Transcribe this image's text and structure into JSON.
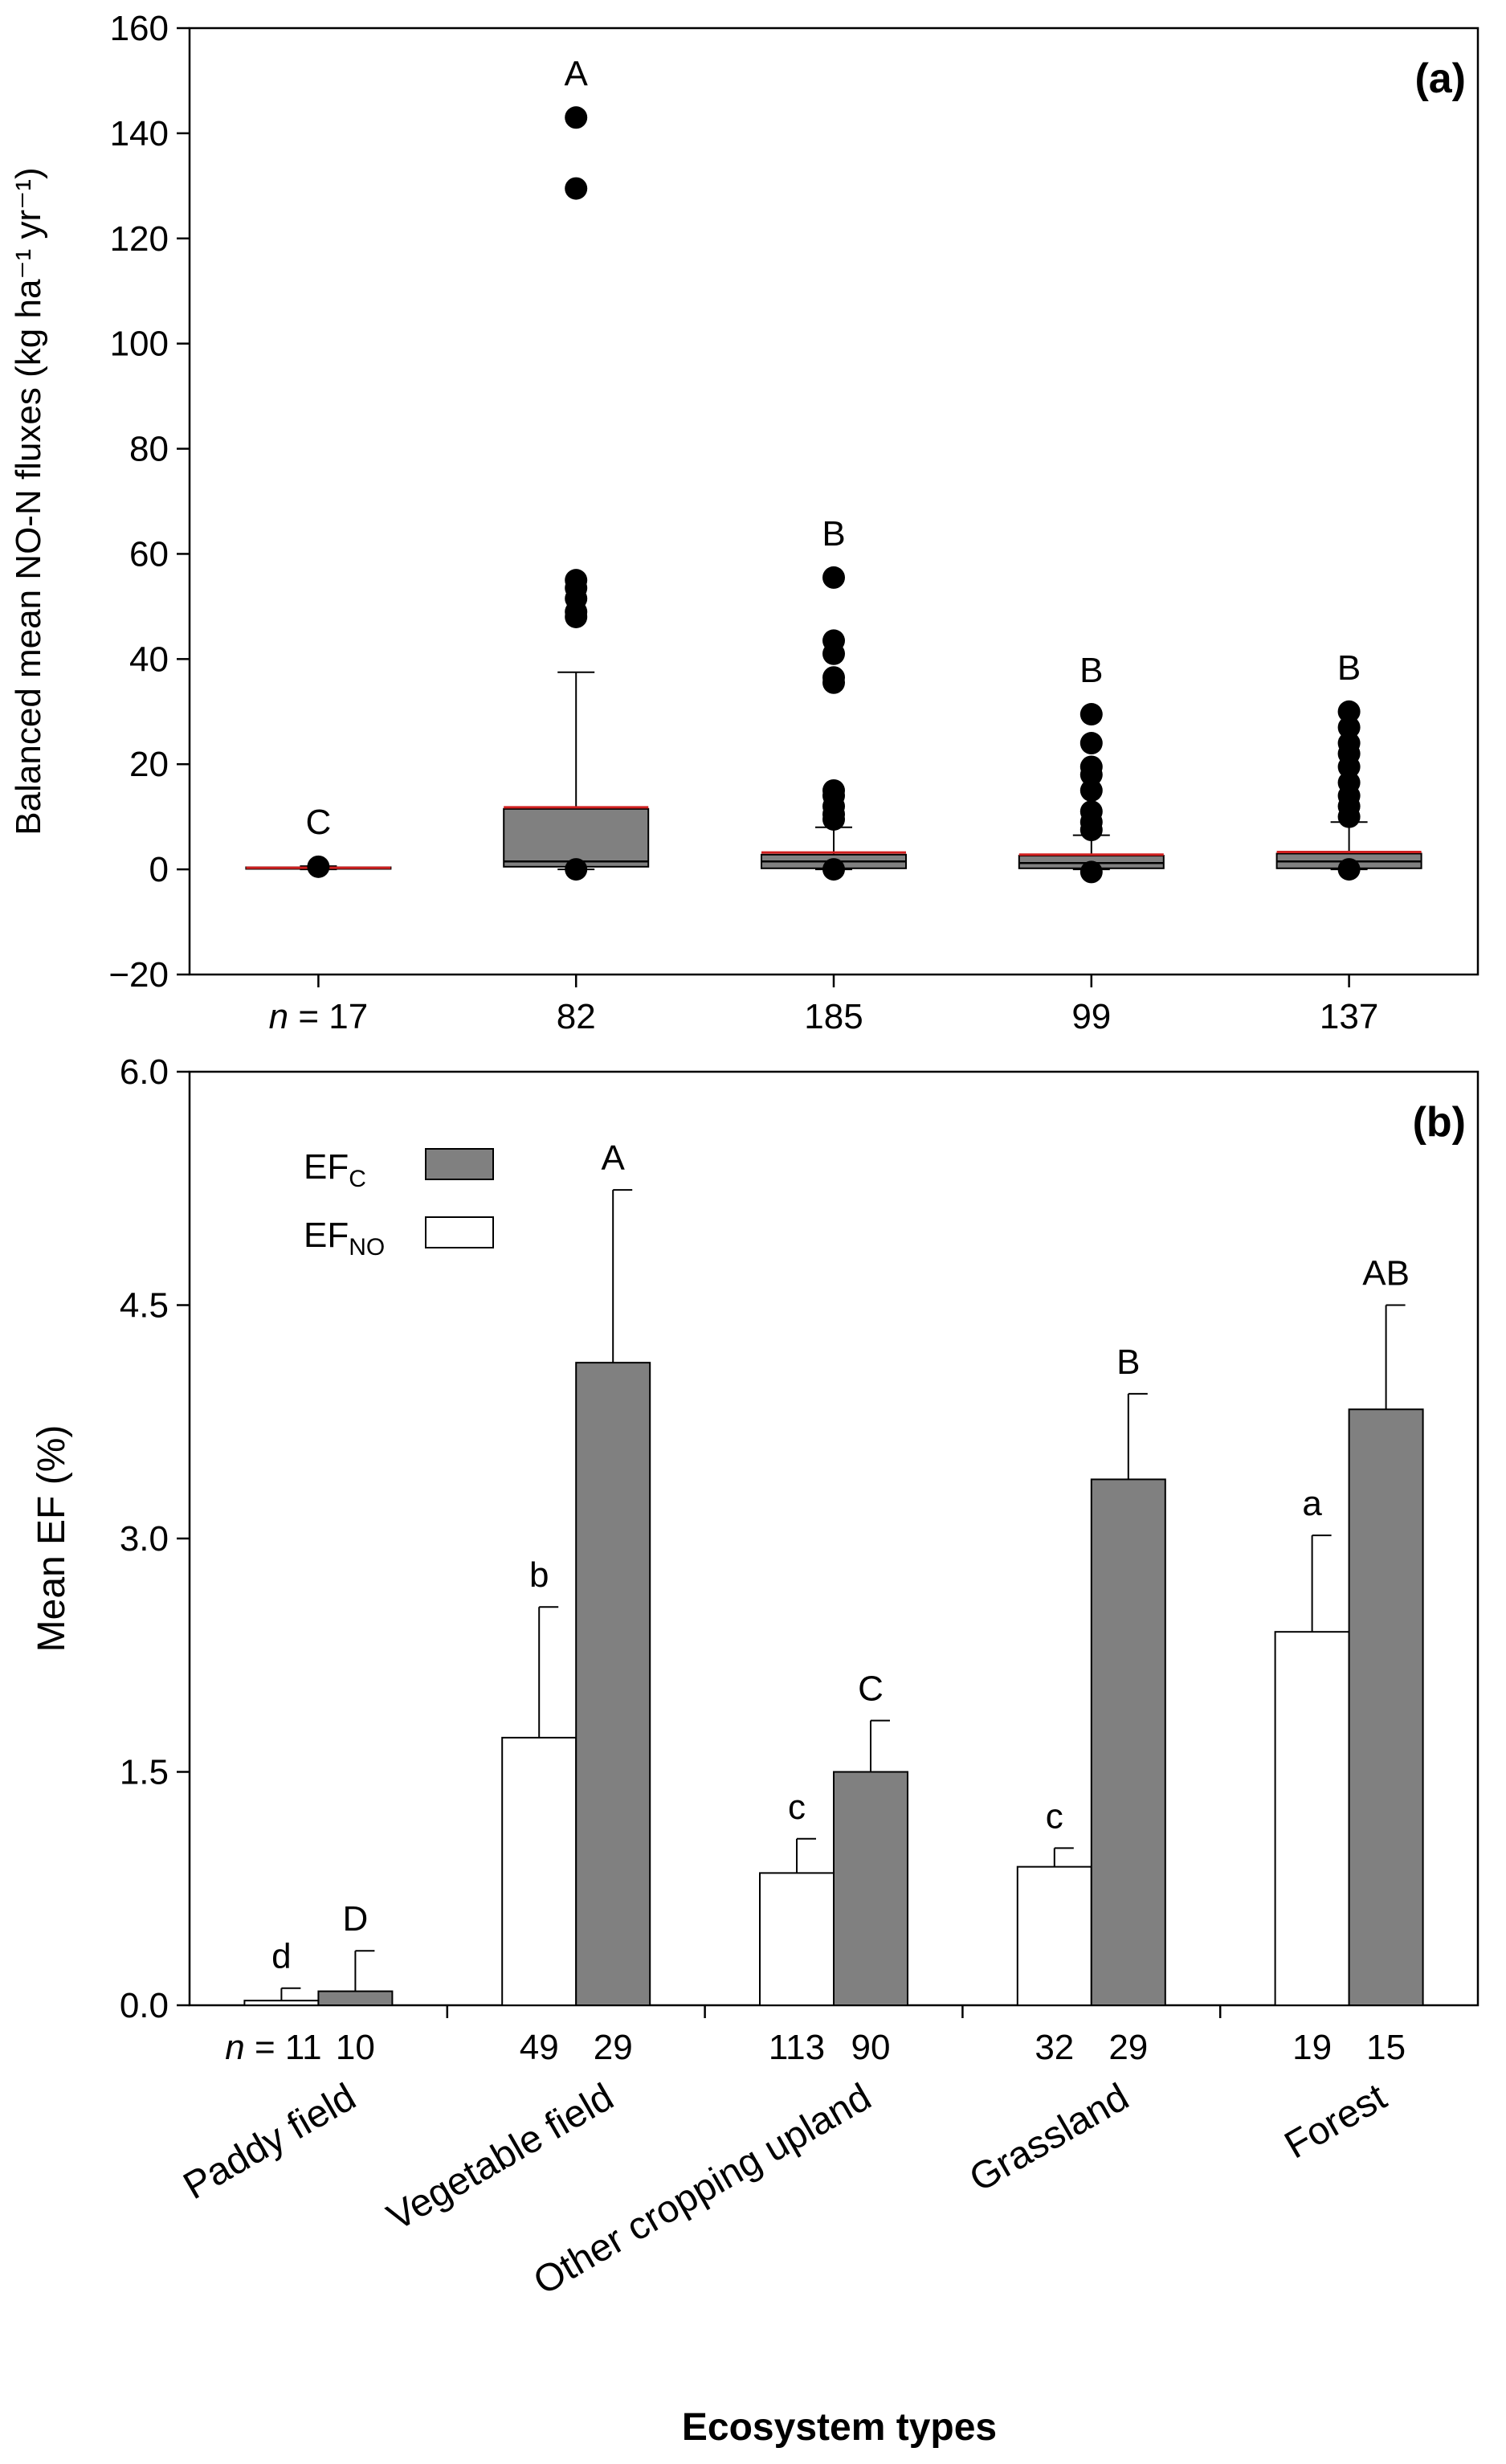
{
  "chart_data": [
    {
      "type": "box",
      "panel_label": "(a)",
      "ylabel": "Balanced mean NO-N fluxes (kg ha⁻¹ yr⁻¹)",
      "ylim": [
        -20,
        160
      ],
      "yticks": [
        "−20",
        "0",
        "20",
        "40",
        "60",
        "80",
        "100",
        "120",
        "140",
        "160"
      ],
      "grid": false,
      "n_prefix": "n",
      "boxes": [
        {
          "category": "Paddy field",
          "n_label": " = 17",
          "letter": "C",
          "q1": 0.1,
          "median": 0.2,
          "q3": 0.4,
          "mean": 0.3,
          "whisker_low": 0,
          "whisker_high": 0.6,
          "outliers": [
            0.5
          ]
        },
        {
          "category": "Vegetable field",
          "n_label": "82",
          "letter": "A",
          "q1": 0.5,
          "median": 1.5,
          "q3": 11.5,
          "mean": 11.8,
          "whisker_low": 0,
          "whisker_high": 37.5,
          "outliers": [
            143,
            129.5,
            55,
            53.5,
            51.5,
            49,
            48,
            0
          ]
        },
        {
          "category": "Other cropping upland",
          "n_label": "185",
          "letter": "B",
          "q1": 0.2,
          "median": 1.5,
          "q3": 2.8,
          "mean": 3.2,
          "whisker_low": 0,
          "whisker_high": 8,
          "outliers": [
            55.5,
            43.5,
            41,
            36.5,
            35.5,
            15,
            14,
            12,
            10.5,
            9.5,
            0
          ]
        },
        {
          "category": "Grassland",
          "n_label": "99",
          "letter": "B",
          "q1": 0.2,
          "median": 1.2,
          "q3": 2.6,
          "mean": 2.8,
          "whisker_low": 0,
          "whisker_high": 6.5,
          "outliers": [
            29.5,
            24,
            19.5,
            18,
            15,
            11,
            9,
            7.5,
            -0.5
          ]
        },
        {
          "category": "Forest",
          "n_label": "137",
          "letter": "B",
          "q1": 0.2,
          "median": 1.5,
          "q3": 3,
          "mean": 3.3,
          "whisker_low": 0,
          "whisker_high": 9,
          "outliers": [
            30,
            27,
            24,
            22,
            19.5,
            16.5,
            14,
            12,
            10,
            0
          ]
        }
      ],
      "colors": {
        "box": "#808080",
        "mean_line": "#d02020",
        "marker": "#000000"
      }
    },
    {
      "type": "bar",
      "panel_label": "(b)",
      "ylabel": "Mean EF (%)",
      "xlabel": "Ecosystem types",
      "ylim": [
        0,
        6
      ],
      "yticks": [
        "0.0",
        "1.5",
        "3.0",
        "4.5",
        "6.0"
      ],
      "grid": false,
      "legend_position": "top-left",
      "n_prefix": "n",
      "categories": [
        "Paddy field",
        "Vegetable field",
        "Other cropping upland",
        "Grassland",
        "Forest"
      ],
      "series": [
        {
          "name": "EF",
          "name_sub": "NO",
          "color": "#ffffff",
          "values": [
            0.03,
            1.72,
            0.85,
            0.89,
            2.4
          ],
          "errors": [
            0.08,
            0.84,
            0.22,
            0.12,
            0.62
          ],
          "letters": [
            "d",
            "b",
            "c",
            "c",
            "a"
          ],
          "n": [
            " = 11",
            "49",
            "113",
            "32",
            "19"
          ]
        },
        {
          "name": "EF",
          "name_sub": "C",
          "color": "#808080",
          "values": [
            0.09,
            4.13,
            1.5,
            3.38,
            3.83
          ],
          "errors": [
            0.26,
            1.11,
            0.33,
            0.55,
            0.67
          ],
          "letters": [
            "D",
            "A",
            "C",
            "B",
            "AB"
          ],
          "n": [
            "10",
            "29",
            "90",
            "29",
            "15"
          ]
        }
      ]
    }
  ]
}
